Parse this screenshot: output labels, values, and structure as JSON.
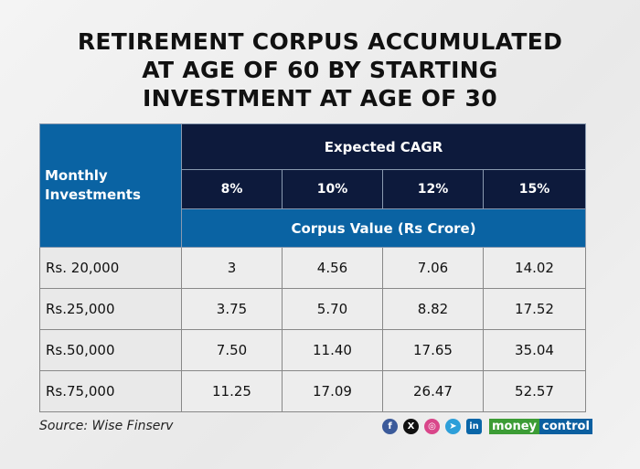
{
  "title": [
    "RETIREMENT CORPUS ACCUMULATED",
    "AT AGE OF 60 BY STARTING",
    "INVESTMENT AT AGE OF 30"
  ],
  "colors": {
    "dark_header": "#0d1a3c",
    "blue_header": "#0a63a3",
    "cell": "#ededed"
  },
  "chart_data": {
    "type": "table",
    "row_header": "Monthly Investments",
    "group_header": "Expected CAGR",
    "columns": [
      "8%",
      "10%",
      "12%",
      "15%"
    ],
    "unit_header": "Corpus Value (Rs Crore)",
    "rows": [
      {
        "label": "Rs. 20,000",
        "values": [
          "3",
          "4.56",
          "7.06",
          "14.02"
        ]
      },
      {
        "label": "Rs.25,000",
        "values": [
          "3.75",
          "5.70",
          "8.82",
          "17.52"
        ]
      },
      {
        "label": "Rs.50,000",
        "values": [
          "7.50",
          "11.40",
          "17.65",
          "35.04"
        ]
      },
      {
        "label": "Rs.75,000",
        "values": [
          "11.25",
          "17.09",
          "26.47",
          "52.57"
        ]
      }
    ]
  },
  "footer": {
    "source": "Source: Wise Finserv",
    "social_icons": [
      "facebook-icon",
      "x-icon",
      "instagram-icon",
      "telegram-icon",
      "linkedin-icon"
    ],
    "logo": [
      "money",
      "control"
    ]
  }
}
